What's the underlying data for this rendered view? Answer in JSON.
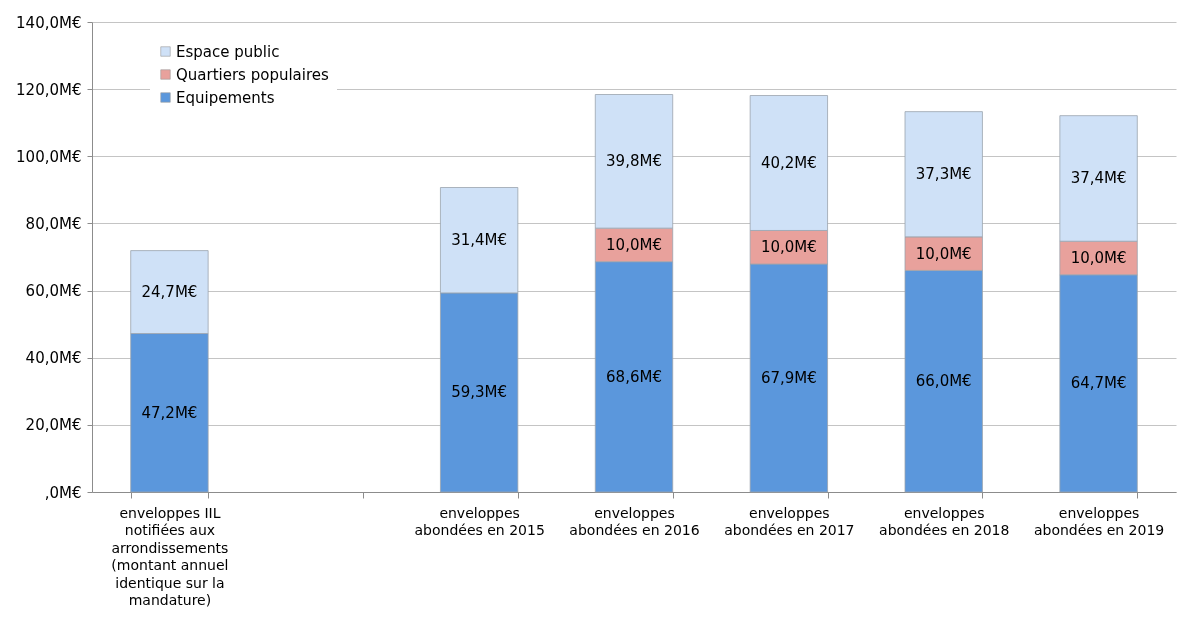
{
  "chart_data": {
    "type": "bar",
    "stacked": true,
    "categories": [
      "enveloppes IIL notifiées aux arrondissements (montant annuel identique sur la mandature)",
      null,
      "enveloppes abondées en 2015",
      "enveloppes abondées en 2016",
      "enveloppes abondées en 2017",
      "enveloppes abondées en 2018",
      "enveloppes abondées en 2019"
    ],
    "series": [
      {
        "name": "Equipements",
        "color": "#5b97dc",
        "values": [
          47.2,
          null,
          59.3,
          68.6,
          67.9,
          66.0,
          64.7
        ],
        "value_labels": [
          "47,2M€",
          null,
          "59,3M€",
          "68,6M€",
          "67,9M€",
          "66,0M€",
          "64,7M€"
        ]
      },
      {
        "name": "Quartiers populaires",
        "color": "#e8a19c",
        "values": [
          null,
          null,
          null,
          10.0,
          10.0,
          10.0,
          10.0
        ],
        "value_labels": [
          null,
          null,
          null,
          "10,0M€",
          "10,0M€",
          "10,0M€",
          "10,0M€"
        ]
      },
      {
        "name": "Espace public",
        "color": "#cfe1f7",
        "values": [
          24.7,
          null,
          31.4,
          39.8,
          40.2,
          37.3,
          37.4
        ],
        "value_labels": [
          "24,7M€",
          null,
          "31,4M€",
          "39,8M€",
          "40,2M€",
          "37,3M€",
          "37,4M€"
        ]
      }
    ],
    "ylim": [
      0,
      140
    ],
    "yticks": [
      {
        "value": 0,
        "label": ",0M€"
      },
      {
        "value": 20,
        "label": "20,0M€"
      },
      {
        "value": 40,
        "label": "40,0M€"
      },
      {
        "value": 60,
        "label": "60,0M€"
      },
      {
        "value": 80,
        "label": "80,0M€"
      },
      {
        "value": 100,
        "label": "100,0M€"
      },
      {
        "value": 120,
        "label": "120,0M€"
      },
      {
        "value": 140,
        "label": "140,0M€"
      }
    ],
    "grid": "y",
    "legend": "top left"
  }
}
